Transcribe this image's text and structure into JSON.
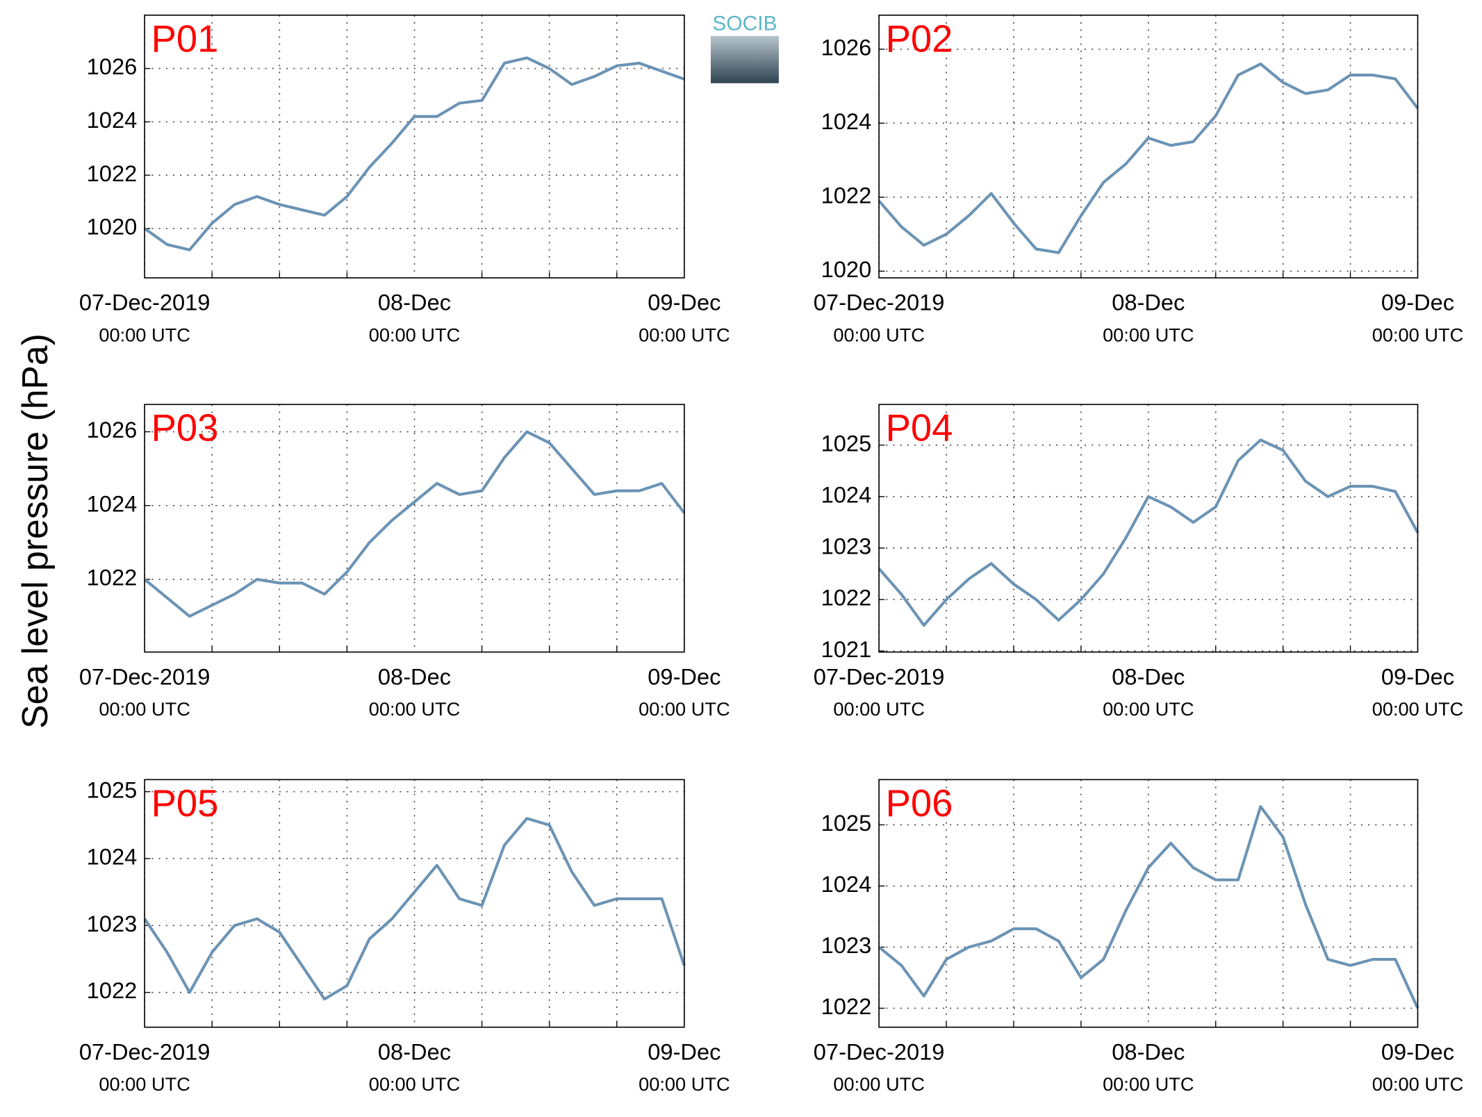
{
  "ylabel": "Sea level pressure (hPa)",
  "logo": "SOCIB",
  "chart_data": [
    {
      "type": "line",
      "title": "P01",
      "x": [
        0,
        2,
        4,
        6,
        8,
        10,
        12,
        14,
        16,
        18,
        20,
        22,
        24,
        26,
        28,
        30,
        32,
        34,
        36,
        38,
        40,
        42,
        44,
        46,
        48
      ],
      "series": [
        {
          "color": "#6b93b5",
          "values": [
            1020.0,
            1019.4,
            1019.2,
            1020.2,
            1020.9,
            1021.2,
            1020.9,
            1020.7,
            1020.5,
            1021.2,
            1022.3,
            1023.2,
            1024.2,
            1024.2,
            1024.7,
            1024.8,
            1026.2,
            1026.4,
            1026.0,
            1025.4,
            1025.7,
            1026.1,
            1026.2,
            1025.9,
            1025.6
          ]
        }
      ],
      "xlim": [
        0,
        48
      ],
      "xticks": [
        {
          "value": 0,
          "label": "07-Dec-2019",
          "sublabel": "00:00 UTC"
        },
        {
          "value": 24,
          "label": "08-Dec",
          "sublabel": "00:00 UTC"
        },
        {
          "value": 48,
          "label": "09-Dec",
          "sublabel": "00:00 UTC"
        }
      ],
      "xminor": [
        6,
        12,
        18,
        30,
        36,
        42
      ],
      "ylim": [
        1018.15,
        1028.0
      ],
      "yticks": [
        1020,
        1022,
        1024,
        1026
      ],
      "grid": true
    },
    {
      "type": "line",
      "title": "P02",
      "x": [
        0,
        2,
        4,
        6,
        8,
        10,
        12,
        14,
        16,
        18,
        20,
        22,
        24,
        26,
        28,
        30,
        32,
        34,
        36,
        38,
        40,
        42,
        44,
        46,
        48
      ],
      "series": [
        {
          "color": "#6b93b5",
          "values": [
            1021.9,
            1021.2,
            1020.7,
            1021.0,
            1021.5,
            1022.1,
            1021.3,
            1020.6,
            1020.5,
            1021.5,
            1022.4,
            1022.9,
            1023.6,
            1023.4,
            1023.5,
            1024.2,
            1025.3,
            1025.6,
            1025.1,
            1024.8,
            1024.9,
            1025.3,
            1025.3,
            1025.2,
            1024.4
          ]
        }
      ],
      "xlim": [
        0,
        48
      ],
      "xticks": [
        {
          "value": 0,
          "label": "07-Dec-2019",
          "sublabel": "00:00 UTC"
        },
        {
          "value": 24,
          "label": "08-Dec",
          "sublabel": "00:00 UTC"
        },
        {
          "value": 48,
          "label": "09-Dec",
          "sublabel": "00:00 UTC"
        }
      ],
      "xminor": [
        6,
        12,
        18,
        30,
        36,
        42
      ],
      "ylim": [
        1019.82,
        1026.92
      ],
      "yticks": [
        1020,
        1022,
        1024,
        1026
      ],
      "grid": true
    },
    {
      "type": "line",
      "title": "P03",
      "x": [
        0,
        2,
        4,
        6,
        8,
        10,
        12,
        14,
        16,
        18,
        20,
        22,
        24,
        26,
        28,
        30,
        32,
        34,
        36,
        38,
        40,
        42,
        44,
        46,
        48
      ],
      "series": [
        {
          "color": "#6b93b5",
          "values": [
            1022.0,
            1021.5,
            1021.0,
            1021.3,
            1021.6,
            1022.0,
            1021.9,
            1021.9,
            1021.6,
            1022.2,
            1023.0,
            1023.6,
            1024.1,
            1024.6,
            1024.3,
            1024.4,
            1025.3,
            1026.0,
            1025.7,
            1025.0,
            1024.3,
            1024.4,
            1024.4,
            1024.6,
            1023.8
          ]
        }
      ],
      "xlim": [
        0,
        48
      ],
      "xticks": [
        {
          "value": 0,
          "label": "07-Dec-2019",
          "sublabel": "00:00 UTC"
        },
        {
          "value": 24,
          "label": "08-Dec",
          "sublabel": "00:00 UTC"
        },
        {
          "value": 48,
          "label": "09-Dec",
          "sublabel": "00:00 UTC"
        }
      ],
      "xminor": [
        6,
        12,
        18,
        30,
        36,
        42
      ],
      "ylim": [
        1020.03,
        1026.74
      ],
      "yticks": [
        1022,
        1024,
        1026
      ],
      "grid": true
    },
    {
      "type": "line",
      "title": "P04",
      "x": [
        0,
        2,
        4,
        6,
        8,
        10,
        12,
        14,
        16,
        18,
        20,
        22,
        24,
        26,
        28,
        30,
        32,
        34,
        36,
        38,
        40,
        42,
        44,
        46,
        48
      ],
      "series": [
        {
          "color": "#6b93b5",
          "values": [
            1022.6,
            1022.1,
            1021.5,
            1022.0,
            1022.4,
            1022.7,
            1022.3,
            1022.0,
            1021.6,
            1022.0,
            1022.5,
            1023.2,
            1024.0,
            1023.8,
            1023.5,
            1023.8,
            1024.7,
            1025.1,
            1024.9,
            1024.3,
            1024.0,
            1024.2,
            1024.2,
            1024.1,
            1023.3
          ]
        }
      ],
      "xlim": [
        0,
        48
      ],
      "xticks": [
        {
          "value": 0,
          "label": "07-Dec-2019",
          "sublabel": "00:00 UTC"
        },
        {
          "value": 24,
          "label": "08-Dec",
          "sublabel": "00:00 UTC"
        },
        {
          "value": 48,
          "label": "09-Dec",
          "sublabel": "00:00 UTC"
        }
      ],
      "xminor": [
        6,
        12,
        18,
        30,
        36,
        42
      ],
      "ylim": [
        1020.98,
        1025.79
      ],
      "yticks": [
        1021,
        1022,
        1023,
        1024,
        1025
      ],
      "grid": true
    },
    {
      "type": "line",
      "title": "P05",
      "x": [
        0,
        2,
        4,
        6,
        8,
        10,
        12,
        14,
        16,
        18,
        20,
        22,
        24,
        26,
        28,
        30,
        32,
        34,
        36,
        38,
        40,
        42,
        44,
        46,
        48
      ],
      "series": [
        {
          "color": "#6b93b5",
          "values": [
            1023.1,
            1022.6,
            1022.0,
            1022.6,
            1023.0,
            1023.1,
            1022.9,
            1022.4,
            1021.9,
            1022.1,
            1022.8,
            1023.1,
            1023.5,
            1023.9,
            1023.4,
            1023.3,
            1024.2,
            1024.6,
            1024.5,
            1023.8,
            1023.3,
            1023.4,
            1023.4,
            1023.4,
            1022.4
          ]
        }
      ],
      "xlim": [
        0,
        48
      ],
      "xticks": [
        {
          "value": 0,
          "label": "07-Dec-2019",
          "sublabel": "00:00 UTC"
        },
        {
          "value": 24,
          "label": "08-Dec",
          "sublabel": "00:00 UTC"
        },
        {
          "value": 48,
          "label": "09-Dec",
          "sublabel": "00:00 UTC"
        }
      ],
      "xminor": [
        6,
        12,
        18,
        30,
        36,
        42
      ],
      "ylim": [
        1021.48,
        1025.18
      ],
      "yticks": [
        1022,
        1023,
        1024,
        1025
      ],
      "grid": true
    },
    {
      "type": "line",
      "title": "P06",
      "x": [
        0,
        2,
        4,
        6,
        8,
        10,
        12,
        14,
        16,
        18,
        20,
        22,
        24,
        26,
        28,
        30,
        32,
        34,
        36,
        38,
        40,
        42,
        44,
        46,
        48
      ],
      "series": [
        {
          "color": "#6b93b5",
          "values": [
            1023.0,
            1022.7,
            1022.2,
            1022.8,
            1023.0,
            1023.1,
            1023.3,
            1023.3,
            1023.1,
            1022.5,
            1022.8,
            1023.6,
            1024.3,
            1024.7,
            1024.3,
            1024.1,
            1024.1,
            1025.3,
            1024.8,
            1023.7,
            1022.8,
            1022.7,
            1022.8,
            1022.8,
            1022.0
          ]
        }
      ],
      "xlim": [
        0,
        48
      ],
      "xticks": [
        {
          "value": 0,
          "label": "07-Dec-2019",
          "sublabel": "00:00 UTC"
        },
        {
          "value": 24,
          "label": "08-Dec",
          "sublabel": "00:00 UTC"
        },
        {
          "value": 48,
          "label": "09-Dec",
          "sublabel": "00:00 UTC"
        }
      ],
      "xminor": [
        6,
        12,
        18,
        30,
        36,
        42
      ],
      "ylim": [
        1021.69,
        1025.74
      ],
      "yticks": [
        1022,
        1023,
        1024,
        1025
      ],
      "grid": true
    }
  ]
}
